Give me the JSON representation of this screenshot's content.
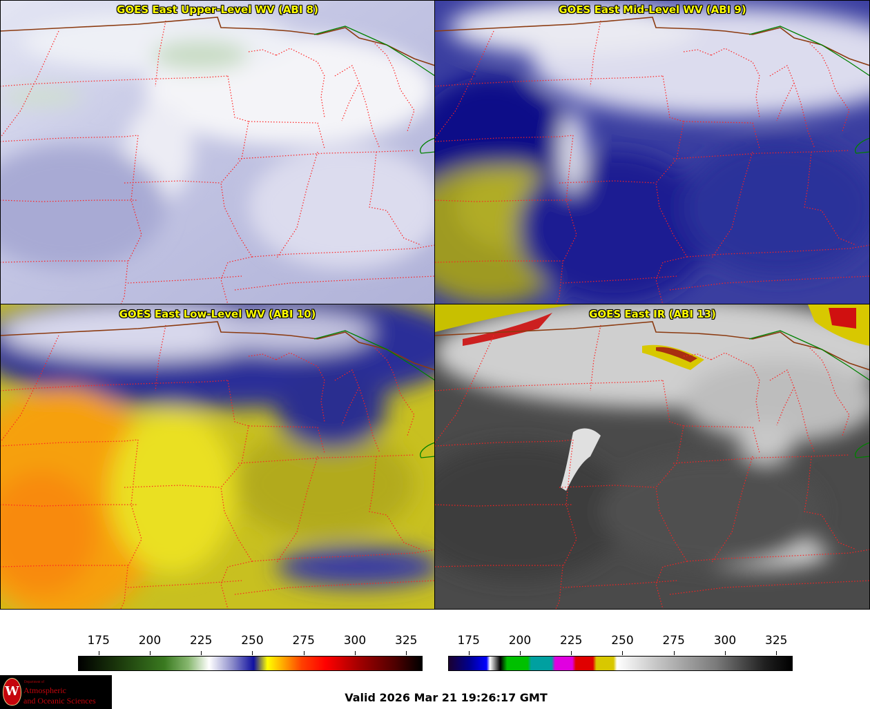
{
  "panels": [
    {
      "title": "GOES East Upper-Level WV (ABI 8)",
      "palette": "wv"
    },
    {
      "title": "GOES East Mid-Level WV (ABI 9)",
      "palette": "wv"
    },
    {
      "title": "GOES East Low-Level WV (ABI 10)",
      "palette": "wv"
    },
    {
      "title": "GOES East IR (ABI 13)",
      "palette": "ir"
    }
  ],
  "colorbars": {
    "wv": {
      "ticks": [
        "175",
        "200",
        "225",
        "250",
        "275",
        "300",
        "325"
      ],
      "range": [
        165,
        333
      ]
    },
    "ir": {
      "ticks": [
        "175",
        "200",
        "225",
        "250",
        "275",
        "300",
        "325"
      ],
      "range": [
        165,
        333
      ]
    }
  },
  "valid_time": "Valid 2026 Mar 21 19:26:17 GMT",
  "logo": {
    "department": "Department of",
    "line1": "Atmospheric",
    "line2": "and Oceanic Sciences",
    "seal_letter": "W"
  },
  "colors": {
    "state_border": "#ff2020",
    "country_border": "#8b3a10",
    "lake_border": "#008000",
    "title_text": "#ffff00"
  }
}
